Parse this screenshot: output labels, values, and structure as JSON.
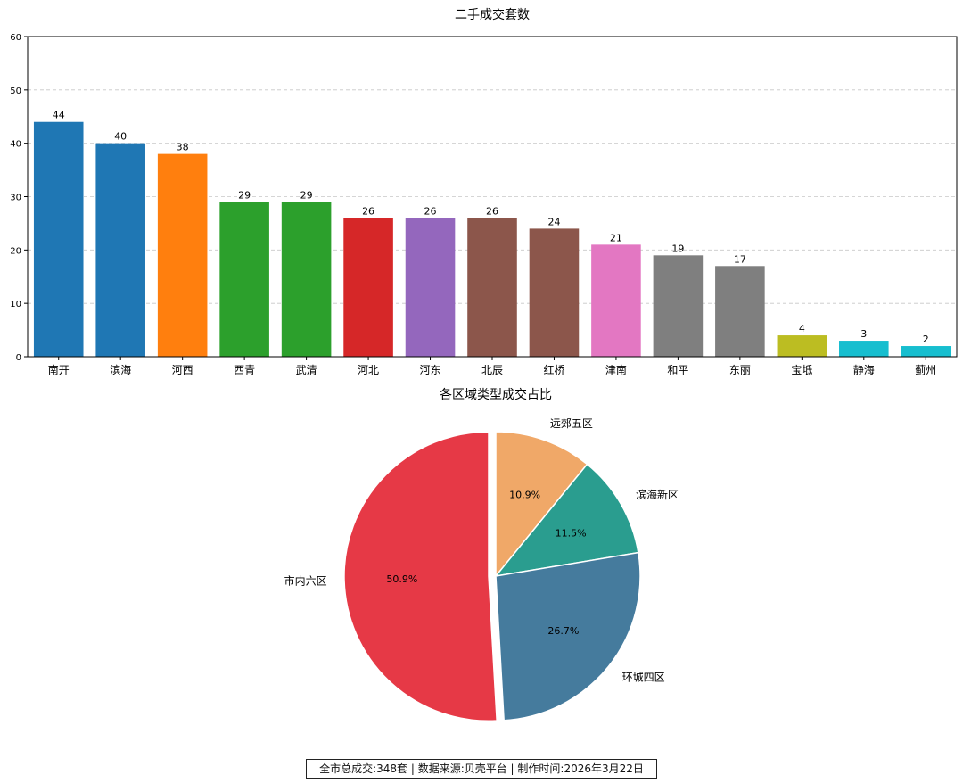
{
  "chart_data": [
    {
      "type": "bar",
      "title": "二手成交套数",
      "xlabel": "",
      "ylabel": "",
      "categories": [
        "南开",
        "滨海",
        "河西",
        "西青",
        "武清",
        "河北",
        "河东",
        "北辰",
        "红桥",
        "津南",
        "和平",
        "东丽",
        "宝坻",
        "静海",
        "蓟州"
      ],
      "values": [
        44,
        40,
        38,
        29,
        29,
        26,
        26,
        26,
        24,
        21,
        19,
        17,
        4,
        3,
        2
      ],
      "colors": [
        "#1f77b4",
        "#1f77b4",
        "#ff7f0e",
        "#2ca02c",
        "#2ca02c",
        "#d62728",
        "#9467bd",
        "#8c564b",
        "#8c564b",
        "#e377c2",
        "#7f7f7f",
        "#7f7f7f",
        "#bcbd22",
        "#17becf",
        "#17becf"
      ],
      "ylim": [
        0,
        60
      ],
      "yticks": [
        0,
        10,
        20,
        30,
        40,
        50,
        60
      ],
      "grid": "horizontal dashed",
      "data_labels": true
    },
    {
      "type": "pie",
      "title": "各区域类型成交占比",
      "labels": [
        "远郊五区",
        "滨海新区",
        "环城四区",
        "市内六区"
      ],
      "values": [
        10.9,
        11.5,
        26.7,
        50.9
      ],
      "value_labels": [
        "10.9%",
        "11.5%",
        "26.7%",
        "50.9%"
      ],
      "colors": [
        "#f0a868",
        "#2a9d8f",
        "#457b9d",
        "#e63946"
      ],
      "exploded": "市内六区",
      "start": "top, clockwise"
    }
  ],
  "footer": {
    "text": "全市总成交:348套 | 数据来源:贝壳平台 | 制作时间:2026年3月22日"
  }
}
